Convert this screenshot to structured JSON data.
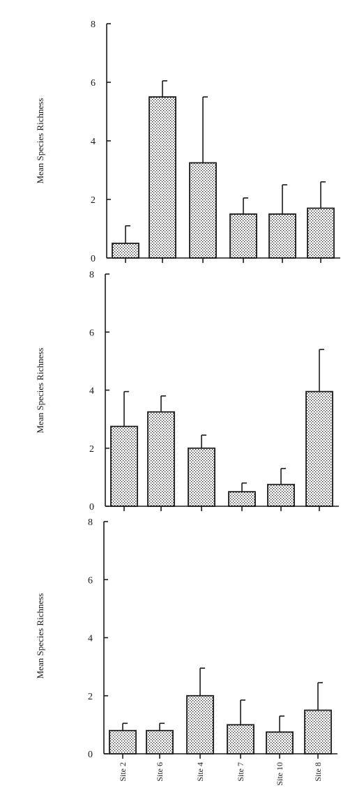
{
  "chart_data": [
    {
      "type": "bar",
      "ylabel": "Mean Species Richness",
      "ylim": [
        0,
        8
      ],
      "yticks": [
        0,
        2,
        4,
        6,
        8
      ],
      "categories": [
        "Site 2",
        "Site 6",
        "Site 4",
        "Site 7",
        "Site 10",
        "Site 8"
      ],
      "values": [
        0.5,
        5.5,
        3.25,
        1.5,
        1.5,
        1.7
      ],
      "error_upper": [
        1.1,
        6.05,
        5.5,
        2.05,
        2.5,
        2.6
      ],
      "show_category_labels": false,
      "grid": false
    },
    {
      "type": "bar",
      "ylabel": "Mean Species Richness",
      "ylim": [
        0,
        8
      ],
      "yticks": [
        0,
        2,
        4,
        6,
        8
      ],
      "categories": [
        "Site 2",
        "Site 6",
        "Site 4",
        "Site 7",
        "Site 10",
        "Site 8"
      ],
      "values": [
        2.75,
        3.25,
        2.0,
        0.5,
        0.75,
        3.95
      ],
      "error_upper": [
        3.95,
        3.8,
        2.45,
        0.8,
        1.3,
        5.4
      ],
      "show_category_labels": false,
      "grid": false
    },
    {
      "type": "bar",
      "ylabel": "Mean Species Richness",
      "ylim": [
        0,
        8
      ],
      "yticks": [
        0,
        2,
        4,
        6,
        8
      ],
      "categories": [
        "Site 2",
        "Site 6",
        "Site 4",
        "Site 7",
        "Site 10",
        "Site 8"
      ],
      "values": [
        0.8,
        0.8,
        2.0,
        1.0,
        0.75,
        1.5
      ],
      "error_upper": [
        1.05,
        1.05,
        2.95,
        1.85,
        1.3,
        2.45
      ],
      "show_category_labels": true,
      "grid": false
    }
  ],
  "style": {
    "ink_color": "#1a1a1a",
    "bar_fill_pattern": "stippled",
    "background": "#ffffff"
  }
}
